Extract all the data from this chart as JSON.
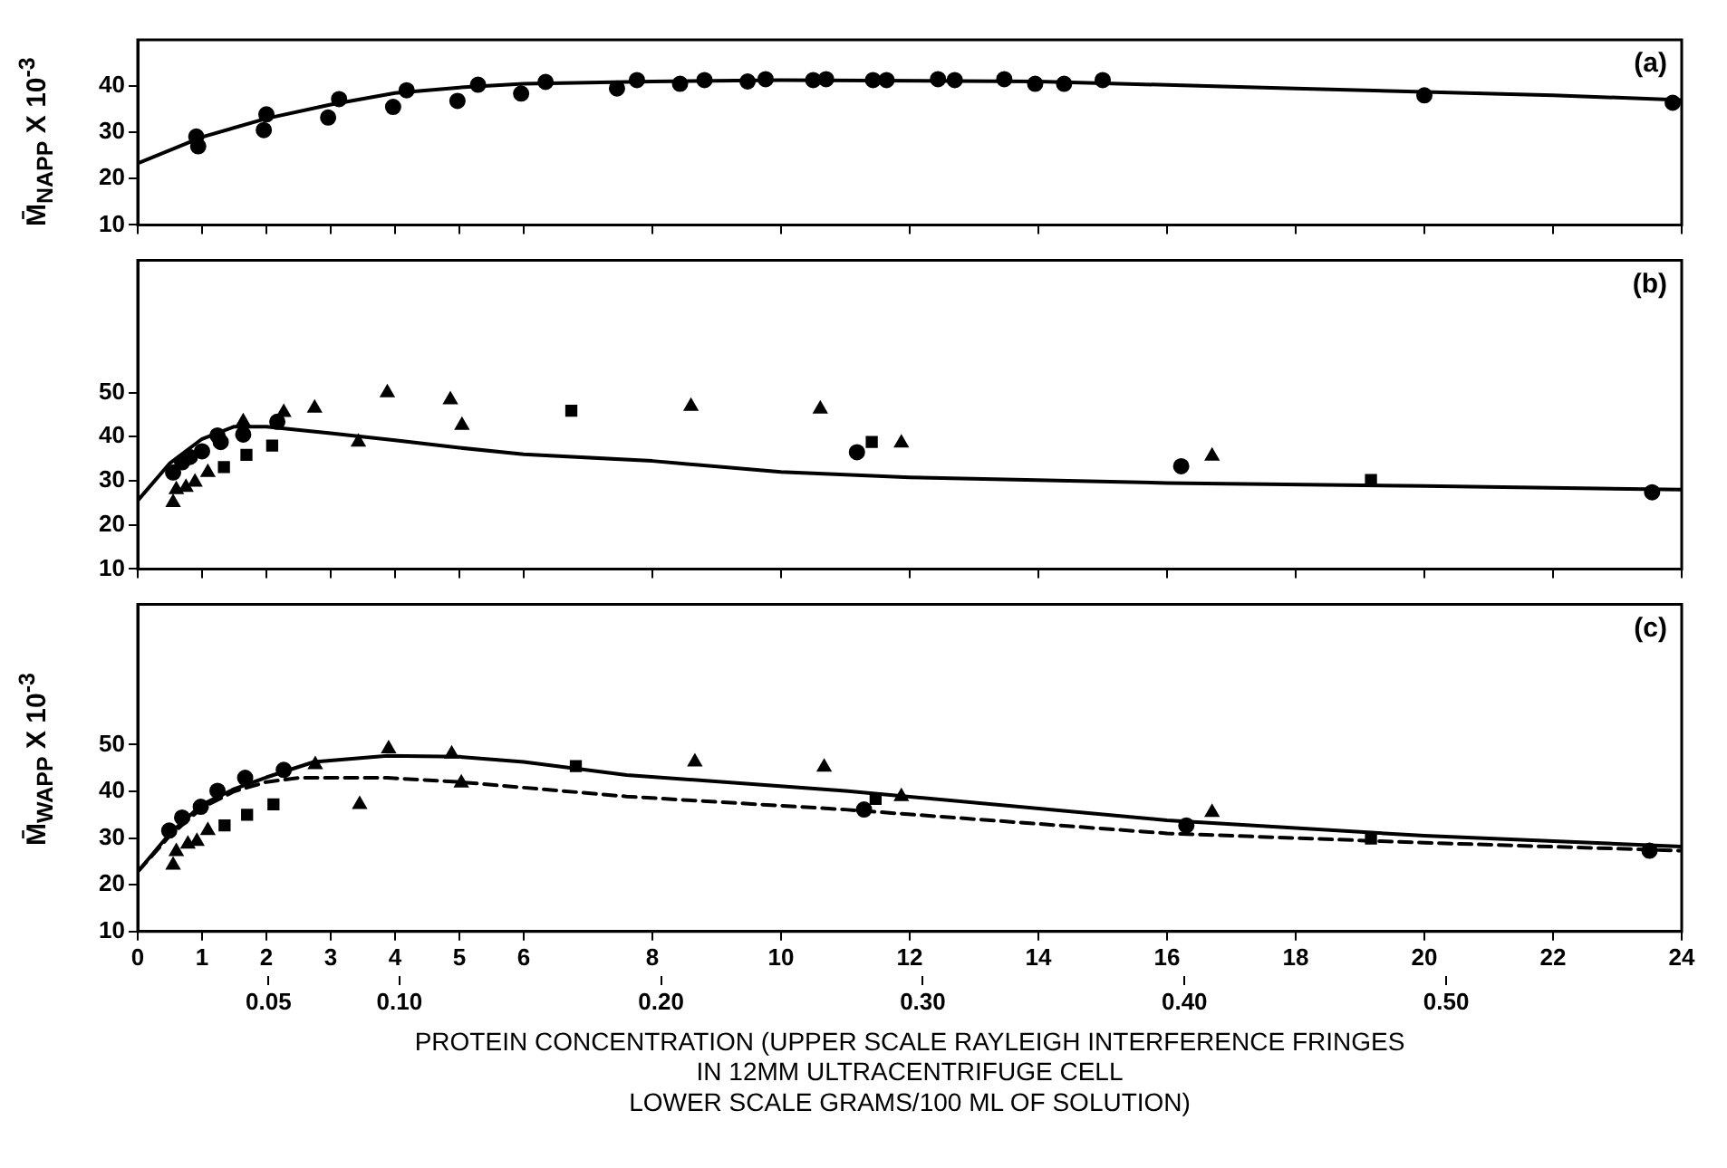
{
  "chart_data": [
    {
      "type": "scatter",
      "ylabel": "M̄$_{NAPP}$ X 10$^{-3}$",
      "xlim": [
        0,
        24
      ],
      "xticks": [
        0,
        1,
        2,
        3,
        4,
        5,
        6,
        8,
        10,
        12,
        14,
        16,
        18,
        20,
        22,
        24
      ],
      "ylim": [
        10,
        50
      ],
      "yticks": [
        10,
        20,
        30,
        40
      ],
      "tick_labels": "y",
      "annotations": [
        "(a)"
      ],
      "series": [
        {
          "color": "#000000",
          "marker": "circle",
          "x": [
            0.91,
            2.0,
            3.13,
            4.18,
            5.29,
            6.34,
            7.76,
            8.81,
            9.76,
            10.7,
            11.64,
            12.7,
            13.95,
            14.4,
            20.0,
            23.86
          ],
          "values": [
            29.1,
            33.9,
            37.2,
            39.1,
            40.3,
            40.9,
            41.3,
            41.3,
            41.5,
            41.5,
            41.3,
            41.3,
            40.5,
            40.5,
            38.0,
            36.4
          ]
        },
        {
          "color": "#000000",
          "marker": "circle",
          "x": [
            0.94,
            1.96,
            2.96,
            3.97,
            4.97,
            5.96,
            7.45,
            8.43,
            9.48,
            10.5,
            11.43,
            12.44,
            13.47,
            15.0
          ],
          "values": [
            27.0,
            30.5,
            33.2,
            35.5,
            36.8,
            38.4,
            39.5,
            40.5,
            41.0,
            41.3,
            41.3,
            41.5,
            41.5,
            41.3
          ]
        },
        {
          "type": "line",
          "color": "#000000",
          "marker": "none",
          "line_style": "solid",
          "x": [
            0,
            1,
            2,
            3,
            4,
            5,
            6,
            8,
            10,
            14,
            18,
            22,
            24
          ],
          "values": [
            23.3,
            29,
            33,
            36,
            38.5,
            39.7,
            40.5,
            41,
            41.3,
            41,
            39.5,
            38,
            37
          ]
        }
      ]
    },
    {
      "type": "scatter",
      "xlim": [
        0,
        24
      ],
      "xticks": [
        0,
        1,
        2,
        3,
        4,
        5,
        6,
        8,
        10,
        12,
        14,
        16,
        18,
        20,
        22,
        24
      ],
      "ylim": [
        10,
        80
      ],
      "yticks": [
        10,
        20,
        30,
        40,
        50
      ],
      "tick_labels": "y",
      "annotations": [
        "(b)"
      ],
      "series": [
        {
          "color": "#000000",
          "marker": "circle",
          "x": [
            0.55,
            0.69,
            0.81,
            1.0,
            1.24,
            1.29,
            1.64,
            2.17
          ],
          "values": [
            31.9,
            34.2,
            35.4,
            36.7,
            40.3,
            38.8,
            40.5,
            43.4
          ]
        },
        {
          "color": "#000000",
          "marker": "triangle",
          "x": [
            1.64
          ],
          "values": [
            43.4
          ]
        },
        {
          "color": "#000000",
          "marker": "square",
          "x": [
            1.34,
            1.69,
            2.09
          ],
          "values": [
            33.1,
            35.9,
            38.0
          ]
        },
        {
          "color": "#000000",
          "marker": "triangle",
          "x": [
            0.55,
            0.6,
            0.75,
            0.89,
            1.09
          ],
          "values": [
            25.1,
            28.0,
            28.5,
            29.7,
            31.9
          ]
        },
        {
          "color": "#000000",
          "marker": "triangle",
          "x": [
            2.27,
            2.75,
            3.88,
            4.86,
            8.6,
            10.61
          ],
          "values": [
            45.5,
            46.5,
            50.0,
            48.4,
            46.9,
            46.3
          ]
        },
        {
          "color": "#000000",
          "marker": "triangle",
          "x": [
            3.43,
            5.04,
            11.87,
            16.7
          ],
          "values": [
            38.8,
            42.6,
            38.6,
            35.6
          ]
        },
        {
          "color": "#000000",
          "marker": "square",
          "x": [
            6.74,
            11.41,
            19.17
          ],
          "values": [
            45.9,
            38.8,
            30.2
          ]
        },
        {
          "color": "#000000",
          "marker": "circle",
          "x": [
            11.18,
            16.22,
            23.54
          ],
          "values": [
            36.5,
            33.3,
            27.4
          ]
        },
        {
          "type": "line",
          "color": "#000000",
          "marker": "none",
          "line_style": "solid",
          "x": [
            0,
            0.5,
            1,
            1.5,
            2,
            3,
            4,
            5,
            6,
            8,
            10,
            12,
            16,
            20,
            24
          ],
          "values": [
            25.5,
            34,
            39.5,
            42.3,
            42.3,
            40.8,
            39.2,
            37.5,
            36,
            34.5,
            32,
            30.8,
            29.5,
            28.8,
            28
          ]
        }
      ]
    },
    {
      "type": "scatter",
      "ylabel": "M̄$_{WAPP}$ X 10$^{-3}$",
      "xlabel": "PROTEIN CONCENTRATION (UPPER SCALE RAYLEIGH INTERFERENCE FRINGES\nIN 12MM ULTRACENTRIFUGE CELL\nLOWER SCALE GRAMS/100 ML OF SOLUTION)",
      "xlim": [
        0,
        24
      ],
      "xticks": [
        0,
        1,
        2,
        3,
        4,
        5,
        6,
        8,
        10,
        12,
        14,
        16,
        18,
        20,
        22,
        24
      ],
      "x2lim": [
        0,
        0.59
      ],
      "x2ticks": [
        0.05,
        {
          "value": 0.1,
          "label": "0.10"
        },
        {
          "value": 0.2,
          "label": "0.20"
        },
        {
          "value": 0.3,
          "label": "0.30"
        },
        {
          "value": 0.4,
          "label": "0.40"
        },
        {
          "value": 0.5,
          "label": "0.50"
        }
      ],
      "ylim": [
        10,
        80
      ],
      "yticks": [
        10,
        20,
        30,
        40,
        50
      ],
      "annotations": [
        "(c)"
      ],
      "series": [
        {
          "color": "#000000",
          "marker": "circle",
          "x": [
            0.49,
            0.69,
            0.98,
            1.24,
            1.67,
            2.27
          ],
          "values": [
            31.6,
            34.4,
            36.7,
            40.1,
            42.9,
            44.6
          ]
        },
        {
          "color": "#000000",
          "marker": "triangle",
          "x": [
            0.55,
            0.6,
            0.78,
            0.92,
            1.09
          ],
          "values": [
            24.2,
            27.1,
            28.7,
            29.3,
            31.6
          ]
        },
        {
          "color": "#000000",
          "marker": "square",
          "x": [
            1.35,
            1.7,
            2.11
          ],
          "values": [
            32.7,
            35.0,
            37.2
          ]
        },
        {
          "color": "#000000",
          "marker": "triangle",
          "x": [
            2.76,
            3.9,
            4.88,
            8.66,
            10.67
          ],
          "values": [
            45.7,
            49.1,
            48.0,
            46.3,
            45.2
          ]
        },
        {
          "color": "#000000",
          "marker": "triangle",
          "x": [
            3.45,
            5.03,
            11.87,
            16.7
          ],
          "values": [
            37.2,
            41.8,
            38.9,
            35.5
          ]
        },
        {
          "color": "#000000",
          "marker": "square",
          "x": [
            6.81,
            11.47,
            19.17
          ],
          "values": [
            45.4,
            38.4,
            29.9
          ]
        },
        {
          "color": "#000000",
          "marker": "circle",
          "x": [
            11.29,
            16.3,
            23.5
          ],
          "values": [
            36.1,
            32.7,
            27.3
          ]
        },
        {
          "type": "line",
          "color": "#000000",
          "marker": "none",
          "line_style": "solid",
          "x": [
            0,
            0.5,
            1,
            1.5,
            2,
            2.74,
            3.88,
            5,
            6,
            7.6,
            11,
            16,
            20,
            24
          ],
          "values": [
            22.8,
            31,
            37.2,
            40.5,
            43,
            46.3,
            47.6,
            47.4,
            46.3,
            43.5,
            40.1,
            33.8,
            30.5,
            28.2
          ]
        },
        {
          "type": "line",
          "color": "#000000",
          "marker": "none",
          "line_style": "dashed",
          "x": [
            0,
            0.5,
            1,
            1.5,
            2,
            2.5,
            3.88,
            5,
            6,
            7.6,
            11,
            16,
            20,
            24
          ],
          "values": [
            22.8,
            30.5,
            36.5,
            40,
            42,
            42.9,
            42.9,
            42.0,
            40.8,
            38.9,
            36.1,
            31.0,
            29,
            27.3
          ]
        }
      ]
    }
  ]
}
